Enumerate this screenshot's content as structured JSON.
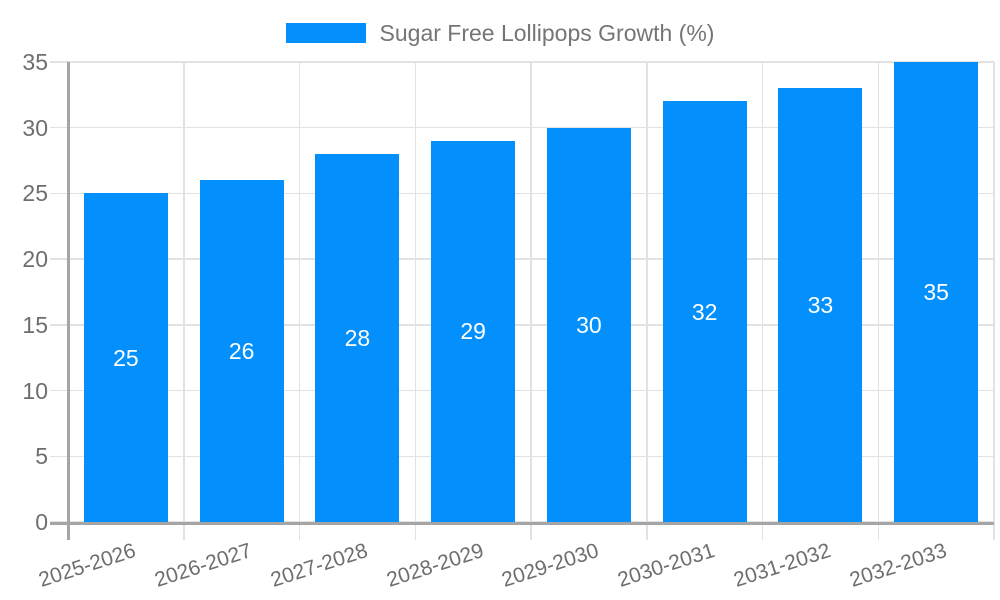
{
  "legend": {
    "label": "Sugar Free Lollipops Growth (%)"
  },
  "colors": {
    "bar": "#0390FC",
    "grid": "#E2E2E2",
    "axis": "#A5A5A5",
    "axis_text": "#6E6E6E",
    "legend_text": "#757575",
    "value_label": "#FFFFFF",
    "background": "#FFFFFF"
  },
  "chart_data": {
    "type": "bar",
    "title": "Sugar Free Lollipops Growth (%)",
    "categories": [
      "2025-2026",
      "2026-2027",
      "2027-2028",
      "2028-2029",
      "2029-2030",
      "2030-2031",
      "2031-2032",
      "2032-2033"
    ],
    "values": [
      25,
      26,
      28,
      29,
      30,
      32,
      33,
      35
    ],
    "value_labels": [
      "25",
      "26",
      "28",
      "29",
      "30",
      "32",
      "33",
      "35"
    ],
    "xlabel": "",
    "ylabel": "",
    "ylim": [
      0,
      35
    ],
    "yticks": [
      0,
      5,
      10,
      15,
      20,
      25,
      30,
      35
    ],
    "grid": true,
    "legend_position": "top-center",
    "bar_color": "#0390FC",
    "value_label_position": "inside-center",
    "x_label_rotation_deg": -18
  }
}
